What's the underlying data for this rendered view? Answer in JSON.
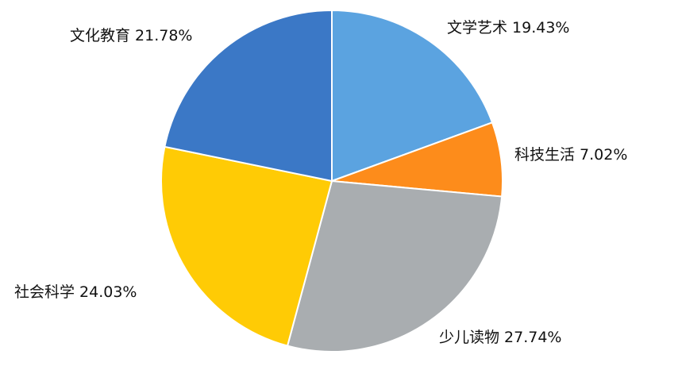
{
  "chart_data": {
    "type": "pie",
    "categories": [
      "文学艺术",
      "科技生活",
      "少儿读物",
      "社会科学",
      "文化教育"
    ],
    "values": [
      19.43,
      7.02,
      27.74,
      24.03,
      21.78
    ],
    "value_labels": [
      "19.43%",
      "7.02%",
      "27.74%",
      "24.03%",
      "21.78%"
    ],
    "colors": [
      "#5ba3e0",
      "#fd8c1b",
      "#a9adb0",
      "#ffcb05",
      "#3b78c6"
    ]
  }
}
